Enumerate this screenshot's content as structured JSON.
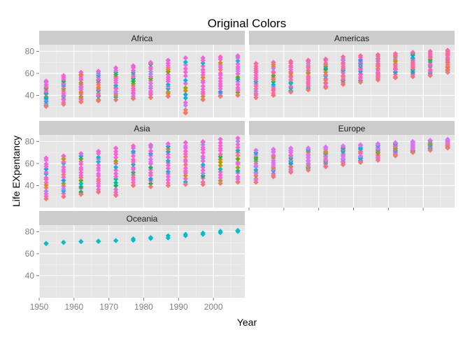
{
  "chart_data": {
    "type": "scatter",
    "title": "Original Colors",
    "xlabel": "Year",
    "ylabel": "Life EXpentancy",
    "xlim": [
      1950,
      2009
    ],
    "ylim": [
      20,
      86
    ],
    "xticks": [
      1950,
      1960,
      1970,
      1980,
      1990,
      2000
    ],
    "yticks": [
      40,
      60,
      80
    ],
    "years": [
      1952,
      1957,
      1962,
      1967,
      1972,
      1977,
      1982,
      1987,
      1992,
      1997,
      2002,
      2007
    ],
    "marker": "diamond",
    "grid": true,
    "panel_background": "#e5e5e5",
    "strip_background": "#cccccc",
    "palette": [
      "#f8766d",
      "#e38900",
      "#c49a00",
      "#99a800",
      "#53b400",
      "#00bc56",
      "#00c094",
      "#00bfc4",
      "#00b6eb",
      "#06a4ff",
      "#a58aff",
      "#df70f8",
      "#fb61d7",
      "#ff66a8"
    ],
    "facets": [
      {
        "name": "Africa",
        "points": [
          {
            "year": 1952,
            "min": 30,
            "max": 53,
            "dominant": 12
          },
          {
            "year": 1957,
            "min": 32,
            "max": 58,
            "dominant": 12
          },
          {
            "year": 1962,
            "min": 34,
            "max": 61,
            "dominant": 12
          },
          {
            "year": 1967,
            "min": 35,
            "max": 62,
            "dominant": 12
          },
          {
            "year": 1972,
            "min": 36,
            "max": 65,
            "dominant": 12
          },
          {
            "year": 1977,
            "min": 37,
            "max": 67,
            "dominant": 12
          },
          {
            "year": 1982,
            "min": 38,
            "max": 70,
            "dominant": 12
          },
          {
            "year": 1987,
            "min": 39,
            "max": 72,
            "dominant": 12
          },
          {
            "year": 1992,
            "min": 24,
            "max": 74,
            "dominant": 12
          },
          {
            "year": 1997,
            "min": 36,
            "max": 74,
            "dominant": 12
          },
          {
            "year": 2002,
            "min": 39,
            "max": 75,
            "dominant": 12
          },
          {
            "year": 2007,
            "min": 40,
            "max": 76,
            "dominant": 12
          }
        ]
      },
      {
        "name": "Americas",
        "points": [
          {
            "year": 1952,
            "min": 38,
            "max": 69,
            "dominant": 13
          },
          {
            "year": 1957,
            "min": 40,
            "max": 70,
            "dominant": 13
          },
          {
            "year": 1962,
            "min": 43,
            "max": 71,
            "dominant": 13
          },
          {
            "year": 1967,
            "min": 45,
            "max": 72,
            "dominant": 13
          },
          {
            "year": 1972,
            "min": 47,
            "max": 73,
            "dominant": 13
          },
          {
            "year": 1977,
            "min": 50,
            "max": 75,
            "dominant": 13
          },
          {
            "year": 1982,
            "min": 52,
            "max": 76,
            "dominant": 13
          },
          {
            "year": 1987,
            "min": 54,
            "max": 77,
            "dominant": 13
          },
          {
            "year": 1992,
            "min": 56,
            "max": 78,
            "dominant": 13
          },
          {
            "year": 1997,
            "min": 57,
            "max": 79,
            "dominant": 13
          },
          {
            "year": 2002,
            "min": 58,
            "max": 80,
            "dominant": 13
          },
          {
            "year": 2007,
            "min": 61,
            "max": 81,
            "dominant": 13
          }
        ]
      },
      {
        "name": "Asia",
        "points": [
          {
            "year": 1952,
            "min": 28,
            "max": 65,
            "dominant": 12
          },
          {
            "year": 1957,
            "min": 30,
            "max": 67,
            "dominant": 12
          },
          {
            "year": 1962,
            "min": 32,
            "max": 69,
            "dominant": 12
          },
          {
            "year": 1967,
            "min": 34,
            "max": 71,
            "dominant": 12
          },
          {
            "year": 1972,
            "min": 31,
            "max": 74,
            "dominant": 12
          },
          {
            "year": 1977,
            "min": 40,
            "max": 76,
            "dominant": 12
          },
          {
            "year": 1982,
            "min": 39,
            "max": 77,
            "dominant": 12
          },
          {
            "year": 1987,
            "min": 40,
            "max": 78,
            "dominant": 12
          },
          {
            "year": 1992,
            "min": 41,
            "max": 79,
            "dominant": 12
          },
          {
            "year": 1997,
            "min": 41,
            "max": 80,
            "dominant": 12
          },
          {
            "year": 2002,
            "min": 42,
            "max": 82,
            "dominant": 12
          },
          {
            "year": 2007,
            "min": 43,
            "max": 83,
            "dominant": 12
          }
        ]
      },
      {
        "name": "Europe",
        "points": [
          {
            "year": 1952,
            "min": 43,
            "max": 72,
            "dominant": 11
          },
          {
            "year": 1957,
            "min": 48,
            "max": 73,
            "dominant": 11
          },
          {
            "year": 1962,
            "min": 52,
            "max": 74,
            "dominant": 11
          },
          {
            "year": 1967,
            "min": 54,
            "max": 74,
            "dominant": 11
          },
          {
            "year": 1972,
            "min": 57,
            "max": 75,
            "dominant": 11
          },
          {
            "year": 1977,
            "min": 59,
            "max": 76,
            "dominant": 11
          },
          {
            "year": 1982,
            "min": 61,
            "max": 77,
            "dominant": 11
          },
          {
            "year": 1987,
            "min": 63,
            "max": 78,
            "dominant": 11
          },
          {
            "year": 1992,
            "min": 67,
            "max": 79,
            "dominant": 11
          },
          {
            "year": 1997,
            "min": 70,
            "max": 80,
            "dominant": 11
          },
          {
            "year": 2002,
            "min": 72,
            "max": 81,
            "dominant": 11
          },
          {
            "year": 2007,
            "min": 74,
            "max": 82,
            "dominant": 11
          }
        ]
      },
      {
        "name": "Oceania",
        "points": [
          {
            "year": 1952,
            "values": [
              69.1,
              69.4
            ]
          },
          {
            "year": 1957,
            "values": [
              70.3,
              70.3
            ]
          },
          {
            "year": 1962,
            "values": [
              70.9,
              71.2
            ]
          },
          {
            "year": 1967,
            "values": [
              71.1,
              71.5
            ]
          },
          {
            "year": 1972,
            "values": [
              71.9,
              71.9
            ]
          },
          {
            "year": 1977,
            "values": [
              72.2,
              73.5
            ]
          },
          {
            "year": 1982,
            "values": [
              73.8,
              74.7
            ]
          },
          {
            "year": 1987,
            "values": [
              74.3,
              76.3
            ]
          },
          {
            "year": 1992,
            "values": [
              76.3,
              77.6
            ]
          },
          {
            "year": 1997,
            "values": [
              77.6,
              78.8
            ]
          },
          {
            "year": 2002,
            "values": [
              79.1,
              80.4
            ]
          },
          {
            "year": 2007,
            "values": [
              80.2,
              81.2
            ]
          }
        ]
      }
    ]
  }
}
